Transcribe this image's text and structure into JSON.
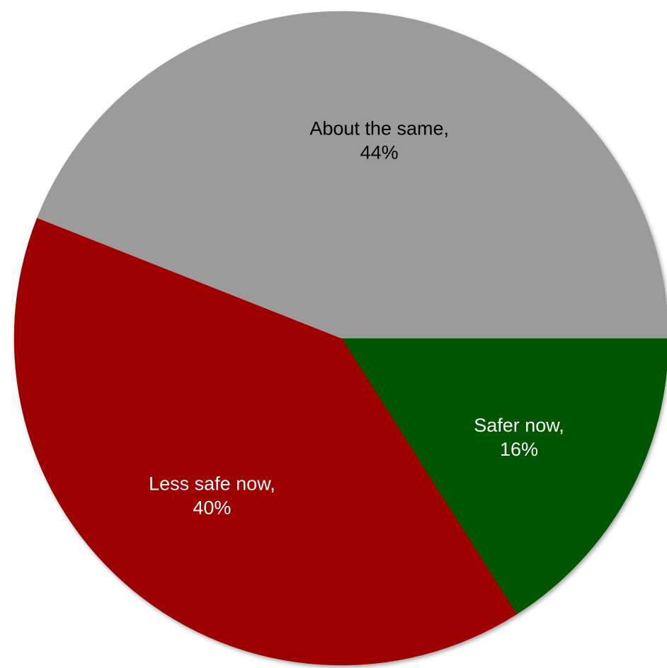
{
  "chart_data": {
    "type": "pie",
    "start": "3 o'clock",
    "direction": "clockwise",
    "slices": [
      {
        "label": "Safer now,",
        "value": 16,
        "value_label": "16%",
        "color": "#005400",
        "label_color": "#ffffff"
      },
      {
        "label": "Less safe now,",
        "value": 40,
        "value_label": "40%",
        "color": "#9e0000",
        "label_color": "#ffffff"
      },
      {
        "label": "About the same,",
        "value": 44,
        "value_label": "44%",
        "color": "#9b9b9b",
        "label_color": "#000000"
      }
    ],
    "legend": "none"
  }
}
